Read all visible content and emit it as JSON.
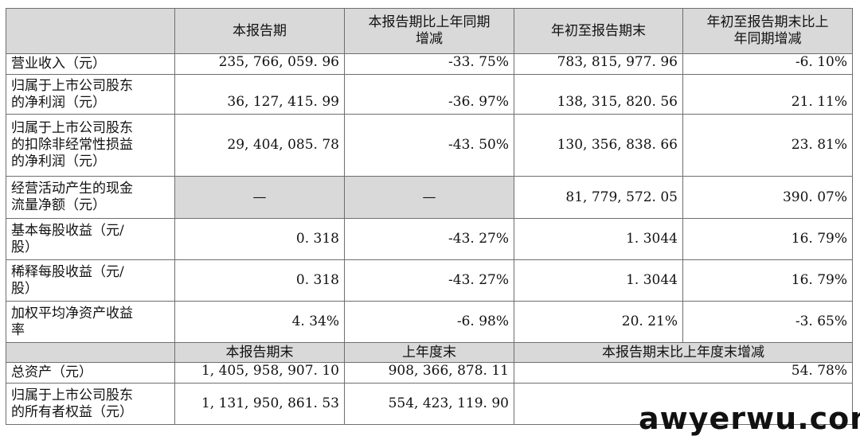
{
  "header": {
    "col1": "本报告期",
    "col2": "本报告期比上年同期\n增减",
    "col3": "年初至报告期末",
    "col4": "年初至报告期末比上\n年同期增减"
  },
  "rows": [
    {
      "label": "营业收入（元）",
      "v1": "235, 766, 059. 96",
      "v2": "-33. 75%",
      "v3": "783, 815, 977. 96",
      "v4": "-6. 10%"
    },
    {
      "label": "归属于上市公司股东\n的净利润（元）",
      "v1": "36, 127, 415. 99",
      "v2": "-36. 97%",
      "v3": "138, 315, 820. 56",
      "v4": "21. 11%"
    },
    {
      "label": "归属于上市公司股东\n的扣除非经常性损益\n的净利润（元）",
      "v1": "29, 404, 085. 78",
      "v2": "-43. 50%",
      "v3": "130, 356, 838. 66",
      "v4": "23. 81%"
    },
    {
      "label": "经营活动产生的现金\n流量净额（元）",
      "v1": "—",
      "v2": "—",
      "v3": "81, 779, 572. 05",
      "v4": "390. 07%"
    },
    {
      "label": "基本每股收益（元/\n股）",
      "v1": "0. 318",
      "v2": "-43. 27%",
      "v3": "1. 3044",
      "v4": "16. 79%"
    },
    {
      "label": "稀释每股收益（元/\n股）",
      "v1": "0. 318",
      "v2": "-43. 27%",
      "v3": "1. 3044",
      "v4": "16. 79%"
    },
    {
      "label": "加权平均净资产收益\n率",
      "v1": "4. 34%",
      "v2": "-6. 98%",
      "v3": "20. 21%",
      "v4": "-3. 65%"
    }
  ],
  "header2": {
    "col1": "本报告期末",
    "col2": "上年度末",
    "col3": "本报告期末比上年度末增减"
  },
  "rows2": [
    {
      "label": "总资产（元）",
      "v1": "1, 405, 958, 907. 10",
      "v2": "908, 366, 878. 11",
      "v3": "54. 78%"
    },
    {
      "label": "归属于上市公司股东\n的所有者权益（元）",
      "v1": "1, 131, 950, 861. 53",
      "v2": "554, 423, 119. 90",
      "v3": ""
    }
  ],
  "watermark": "awyerwu.com"
}
